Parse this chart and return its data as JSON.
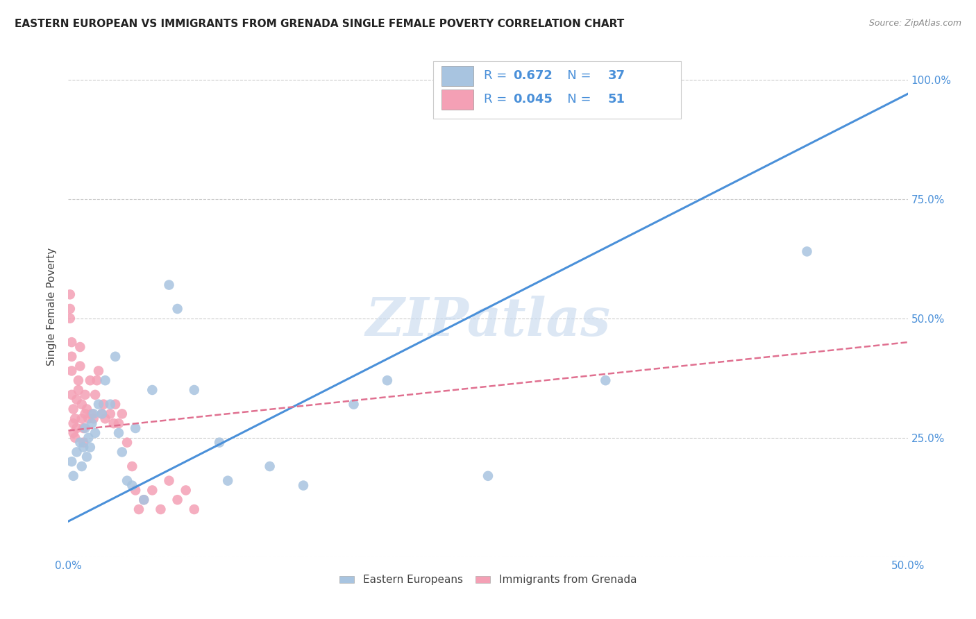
{
  "title": "EASTERN EUROPEAN VS IMMIGRANTS FROM GRENADA SINGLE FEMALE POVERTY CORRELATION CHART",
  "source": "Source: ZipAtlas.com",
  "ylabel": "Single Female Poverty",
  "xlim": [
    0.0,
    0.5
  ],
  "ylim": [
    0.0,
    1.05
  ],
  "xticks": [
    0.0,
    0.1,
    0.2,
    0.3,
    0.4,
    0.5
  ],
  "xtick_labels": [
    "0.0%",
    "",
    "",
    "",
    "",
    "50.0%"
  ],
  "ytick_labels": [
    "",
    "25.0%",
    "50.0%",
    "75.0%",
    "100.0%"
  ],
  "yticks": [
    0.0,
    0.25,
    0.5,
    0.75,
    1.0
  ],
  "blue_R": 0.672,
  "blue_N": 37,
  "pink_R": 0.045,
  "pink_N": 51,
  "blue_color": "#a8c4e0",
  "pink_color": "#f4a0b5",
  "blue_line_color": "#4a90d9",
  "pink_line_color": "#e07090",
  "text_color_blue": "#4a90d9",
  "text_color_dark": "#333333",
  "watermark": "ZIPatlas",
  "blue_points_x": [
    0.002,
    0.003,
    0.005,
    0.007,
    0.008,
    0.009,
    0.01,
    0.011,
    0.012,
    0.013,
    0.014,
    0.015,
    0.016,
    0.018,
    0.02,
    0.022,
    0.025,
    0.028,
    0.03,
    0.032,
    0.035,
    0.038,
    0.04,
    0.045,
    0.05,
    0.06,
    0.065,
    0.075,
    0.09,
    0.095,
    0.12,
    0.14,
    0.17,
    0.19,
    0.25,
    0.32,
    0.44
  ],
  "blue_points_y": [
    0.2,
    0.17,
    0.22,
    0.24,
    0.19,
    0.23,
    0.27,
    0.21,
    0.25,
    0.23,
    0.28,
    0.3,
    0.26,
    0.32,
    0.3,
    0.37,
    0.32,
    0.42,
    0.26,
    0.22,
    0.16,
    0.15,
    0.27,
    0.12,
    0.35,
    0.57,
    0.52,
    0.35,
    0.24,
    0.16,
    0.19,
    0.15,
    0.32,
    0.37,
    0.17,
    0.37,
    0.64
  ],
  "blue_line_x0": 0.0,
  "blue_line_y0": 0.075,
  "blue_line_x1": 0.5,
  "blue_line_y1": 0.97,
  "pink_line_x0": 0.0,
  "pink_line_y0": 0.265,
  "pink_line_x1": 0.5,
  "pink_line_y1": 0.45,
  "pink_points_x": [
    0.001,
    0.001,
    0.001,
    0.002,
    0.002,
    0.002,
    0.002,
    0.003,
    0.003,
    0.003,
    0.004,
    0.004,
    0.005,
    0.005,
    0.006,
    0.006,
    0.007,
    0.007,
    0.008,
    0.008,
    0.009,
    0.009,
    0.01,
    0.01,
    0.011,
    0.012,
    0.013,
    0.014,
    0.015,
    0.016,
    0.017,
    0.018,
    0.02,
    0.021,
    0.022,
    0.025,
    0.027,
    0.028,
    0.03,
    0.032,
    0.035,
    0.038,
    0.04,
    0.042,
    0.045,
    0.05,
    0.055,
    0.06,
    0.065,
    0.07,
    0.075
  ],
  "pink_points_y": [
    0.52,
    0.55,
    0.5,
    0.45,
    0.42,
    0.39,
    0.34,
    0.31,
    0.28,
    0.26,
    0.29,
    0.25,
    0.33,
    0.27,
    0.37,
    0.35,
    0.4,
    0.44,
    0.29,
    0.32,
    0.24,
    0.27,
    0.3,
    0.34,
    0.31,
    0.29,
    0.37,
    0.3,
    0.29,
    0.34,
    0.37,
    0.39,
    0.3,
    0.32,
    0.29,
    0.3,
    0.28,
    0.32,
    0.28,
    0.3,
    0.24,
    0.19,
    0.14,
    0.1,
    0.12,
    0.14,
    0.1,
    0.16,
    0.12,
    0.14,
    0.1
  ],
  "grid_color": "#cccccc",
  "background_color": "#ffffff",
  "title_fontsize": 11,
  "axis_label_fontsize": 11,
  "tick_fontsize": 11,
  "legend_label1": "Eastern Europeans",
  "legend_label2": "Immigrants from Grenada"
}
